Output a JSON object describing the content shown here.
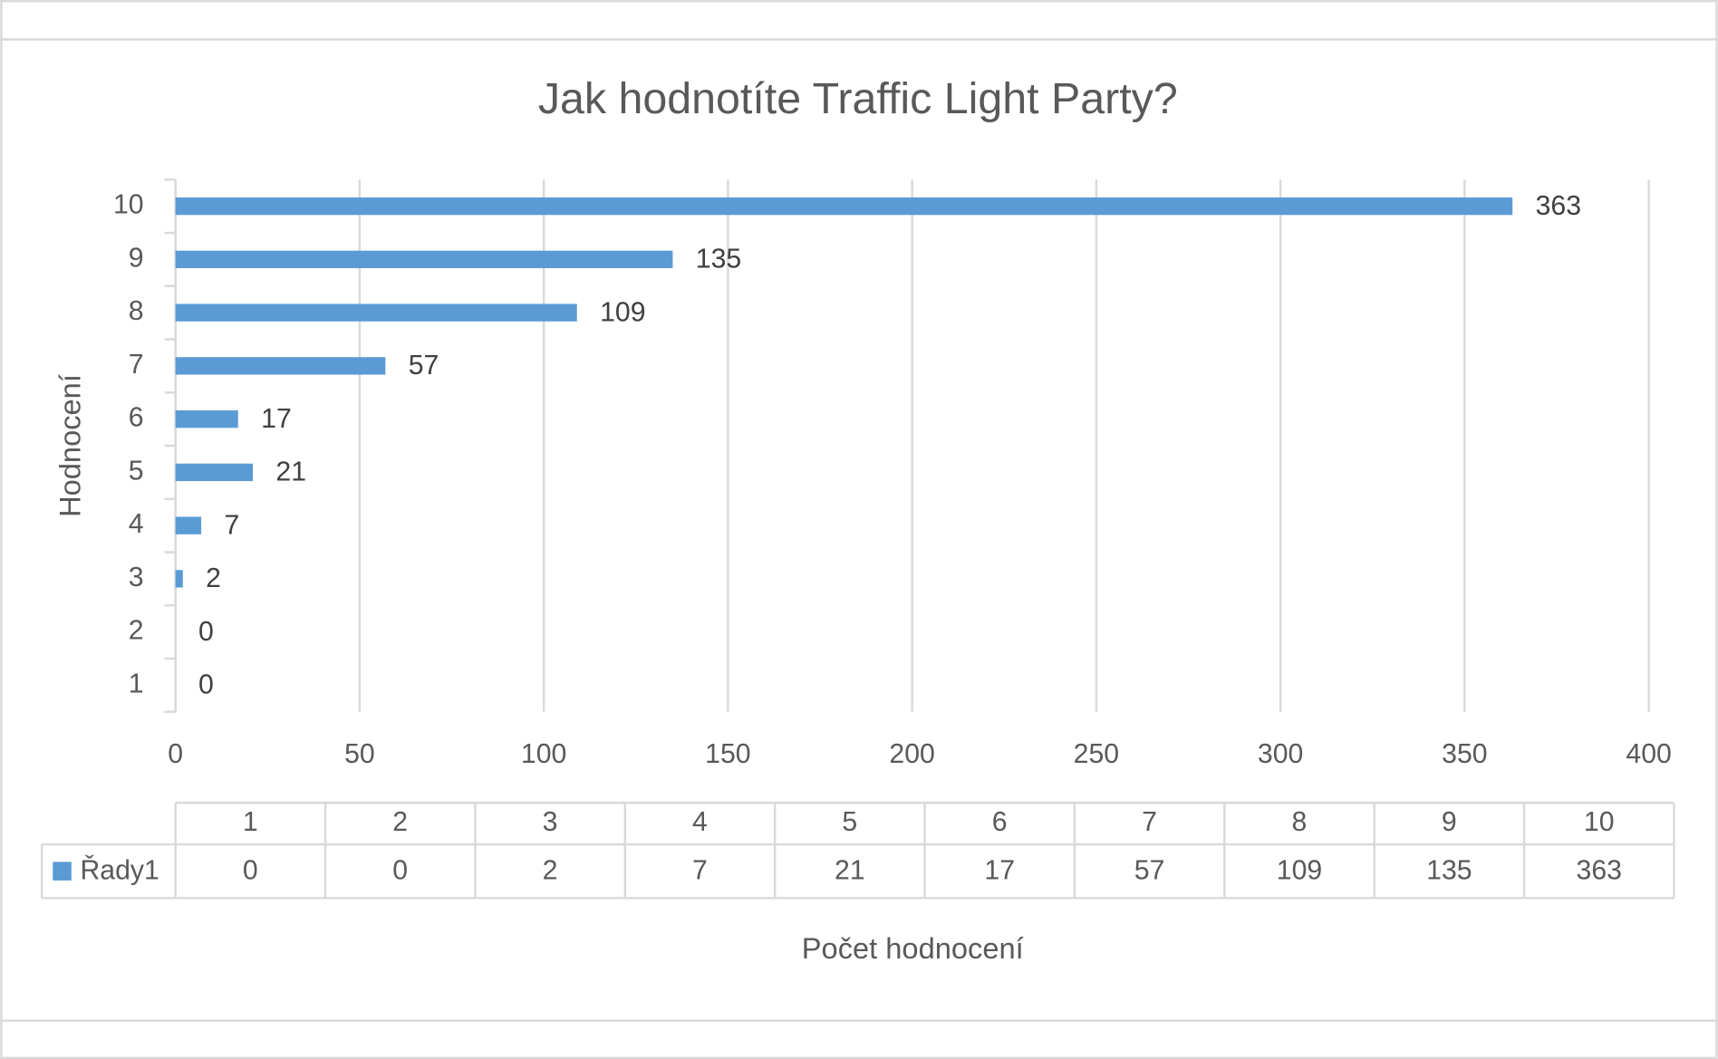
{
  "chart_data": {
    "type": "bar",
    "orientation": "horizontal",
    "title": "Jak hodnotíte Traffic Light Party?",
    "x_label": "Počet hodnocení",
    "y_label": "Hodnocení",
    "categories": [
      "1",
      "2",
      "3",
      "4",
      "5",
      "6",
      "7",
      "8",
      "9",
      "10"
    ],
    "series": [
      {
        "name": "Řady1",
        "color": "#5b9bd5",
        "values": [
          0,
          0,
          2,
          7,
          21,
          17,
          57,
          109,
          135,
          363
        ]
      }
    ],
    "xlim": [
      0,
      400
    ],
    "xticks": [
      0,
      50,
      100,
      150,
      200,
      250,
      300,
      350,
      400
    ],
    "grid": true,
    "data_table": true
  }
}
